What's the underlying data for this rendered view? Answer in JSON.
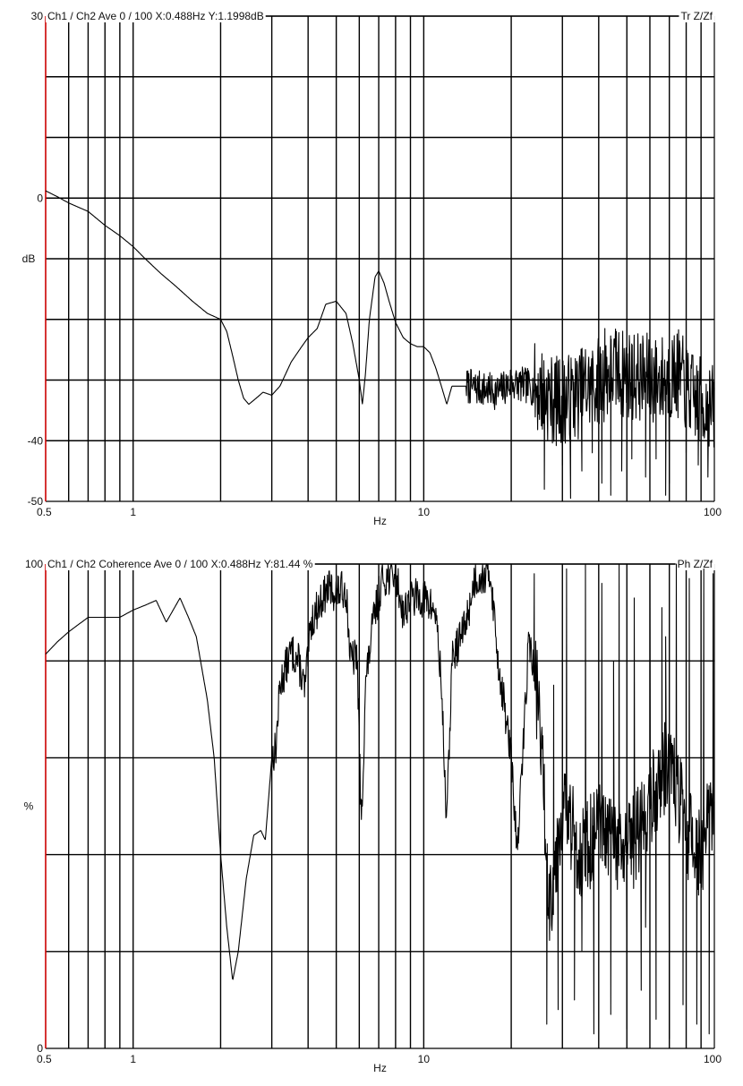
{
  "chart_data": [
    {
      "type": "line",
      "header": "Ch1 / Ch2  Ave 0 / 100  X:0.488Hz  Y:1.1998dB",
      "corner_label": "Tr Z/Zf",
      "xlabel": "Hz",
      "ylabel": "dB",
      "x_scale": "log",
      "xlim": [
        0.5,
        100
      ],
      "ylim": [
        -50,
        30
      ],
      "x_ticklabels": [
        "0.5",
        "1",
        "10",
        "100"
      ],
      "y_ticklabels": [
        "30",
        "0",
        "-40",
        "-50"
      ],
      "grid": true,
      "axis_color": "#cc0000",
      "line_color": "#000000",
      "noise_seed": 7,
      "noise_from_hz": 14,
      "series": [
        {
          "points": [
            [
              0.5,
              1.2
            ],
            [
              0.55,
              0.2
            ],
            [
              0.6,
              -0.8
            ],
            [
              0.7,
              -2.2
            ],
            [
              0.8,
              -4.5
            ],
            [
              0.9,
              -6.2
            ],
            [
              1.0,
              -8.0
            ],
            [
              1.1,
              -10.0
            ],
            [
              1.25,
              -12.5
            ],
            [
              1.4,
              -14.5
            ],
            [
              1.6,
              -17.0
            ],
            [
              1.8,
              -19.0
            ],
            [
              2.0,
              -20.0
            ],
            [
              2.1,
              -22.0
            ],
            [
              2.2,
              -26.0
            ],
            [
              2.3,
              -30.0
            ],
            [
              2.4,
              -33.0
            ],
            [
              2.5,
              -34.0
            ],
            [
              2.65,
              -33.0
            ],
            [
              2.8,
              -32.0
            ],
            [
              3.0,
              -32.5
            ],
            [
              3.2,
              -31.0
            ],
            [
              3.5,
              -27.0
            ],
            [
              3.8,
              -24.5
            ],
            [
              4.0,
              -23.0
            ],
            [
              4.3,
              -21.5
            ],
            [
              4.6,
              -17.5
            ],
            [
              5.0,
              -17.0
            ],
            [
              5.4,
              -19.0
            ],
            [
              5.7,
              -24.0
            ],
            [
              6.0,
              -30.0
            ],
            [
              6.15,
              -34.0
            ],
            [
              6.3,
              -29.0
            ],
            [
              6.5,
              -20.0
            ],
            [
              6.8,
              -13.0
            ],
            [
              7.0,
              -12.0
            ],
            [
              7.3,
              -14.0
            ],
            [
              7.6,
              -17.0
            ],
            [
              8.0,
              -20.5
            ],
            [
              8.5,
              -23.0
            ],
            [
              9.0,
              -24.0
            ],
            [
              9.5,
              -24.5
            ],
            [
              10.0,
              -24.5
            ],
            [
              10.5,
              -25.5
            ],
            [
              11.0,
              -28.0
            ],
            [
              11.5,
              -31.0
            ],
            [
              12.0,
              -34.0
            ],
            [
              12.5,
              -31.0
            ],
            [
              14.0,
              -31.0
            ],
            [
              16.0,
              -31.5
            ],
            [
              18.0,
              -32.0
            ],
            [
              20.0,
              -30.5
            ],
            [
              23.0,
              -31.0
            ],
            [
              26.0,
              -32.0
            ],
            [
              28.0,
              -33.5
            ],
            [
              32.0,
              -33.0
            ],
            [
              38.0,
              -31.0
            ],
            [
              45.0,
              -28.5
            ],
            [
              55.0,
              -29.5
            ],
            [
              65.0,
              -30.0
            ],
            [
              75.0,
              -29.0
            ],
            [
              85.0,
              -33.0
            ],
            [
              100.0,
              -35.0
            ]
          ],
          "noise_amp": 3,
          "spikes": [
            [
              26.0,
              -48.0
            ],
            [
              30.0,
              -44.0
            ],
            [
              32.0,
              -49.5
            ],
            [
              35.0,
              -45.0
            ],
            [
              38.0,
              -42.0
            ],
            [
              41.0,
              -47.0
            ],
            [
              44.0,
              -49.0
            ],
            [
              48.0,
              -45.0
            ],
            [
              52.0,
              -43.0
            ],
            [
              58.0,
              -46.0
            ],
            [
              63.0,
              -43.0
            ],
            [
              68.0,
              -49.0
            ],
            [
              70.0,
              -47.0
            ],
            [
              80.0,
              -42.0
            ],
            [
              88.0,
              -44.0
            ],
            [
              95.0,
              -46.0
            ],
            [
              42.0,
              -21.5
            ],
            [
              46.0,
              -22.0
            ],
            [
              60.0,
              -24.5
            ],
            [
              78.0,
              -26.5
            ],
            [
              36.0,
              -25.0
            ],
            [
              53.0,
              -24.0
            ]
          ]
        }
      ]
    },
    {
      "type": "line",
      "header": "Ch1 / Ch2  Coherence Ave 0 / 100  X:0.488Hz  Y:81.44 %",
      "corner_label": "Ph Z/Zf",
      "xlabel": "Hz",
      "ylabel": "%",
      "x_scale": "log",
      "xlim": [
        0.5,
        100
      ],
      "ylim": [
        0,
        100
      ],
      "x_ticklabels": [
        "0.5",
        "1",
        "10",
        "100"
      ],
      "y_ticklabels": [
        "100",
        "0"
      ],
      "grid": true,
      "axis_color": "#cc0000",
      "line_color": "#000000",
      "noise_seed": 13,
      "noise_from_hz": 3,
      "series": [
        {
          "points": [
            [
              0.5,
              81.4
            ],
            [
              0.55,
              84.0
            ],
            [
              0.6,
              86.0
            ],
            [
              0.7,
              89.0
            ],
            [
              0.8,
              89.0
            ],
            [
              0.9,
              89.0
            ],
            [
              1.0,
              90.5
            ],
            [
              1.1,
              91.5
            ],
            [
              1.2,
              92.5
            ],
            [
              1.3,
              88.0
            ],
            [
              1.45,
              93.0
            ],
            [
              1.55,
              89.0
            ],
            [
              1.65,
              85.0
            ],
            [
              1.8,
              72.0
            ],
            [
              1.9,
              60.0
            ],
            [
              2.0,
              40.0
            ],
            [
              2.1,
              25.0
            ],
            [
              2.2,
              14.0
            ],
            [
              2.3,
              20.0
            ],
            [
              2.45,
              35.0
            ],
            [
              2.6,
              44.0
            ],
            [
              2.75,
              45.0
            ],
            [
              2.85,
              43.0
            ],
            [
              3.0,
              60.0
            ],
            [
              3.1,
              62.0
            ],
            [
              3.2,
              75.0
            ],
            [
              3.5,
              82.0
            ],
            [
              3.7,
              80.0
            ],
            [
              3.9,
              74.0
            ],
            [
              4.1,
              88.0
            ],
            [
              4.4,
              92.0
            ],
            [
              4.7,
              95.0
            ],
            [
              5.0,
              94.0
            ],
            [
              5.4,
              95.0
            ],
            [
              5.6,
              80.0
            ],
            [
              5.9,
              81.0
            ],
            [
              6.1,
              45.0
            ],
            [
              6.3,
              75.0
            ],
            [
              6.7,
              88.0
            ],
            [
              7.2,
              97.0
            ],
            [
              8.0,
              98.0
            ],
            [
              8.5,
              90.0
            ],
            [
              9.0,
              93.0
            ],
            [
              10.0,
              93.0
            ],
            [
              11.0,
              90.0
            ],
            [
              11.5,
              75.0
            ],
            [
              12.0,
              46.0
            ],
            [
              12.5,
              80.0
            ],
            [
              14.0,
              88.0
            ],
            [
              15.0,
              97.0
            ],
            [
              17.0,
              98.0
            ],
            [
              18.0,
              80.0
            ],
            [
              19.0,
              70.0
            ],
            [
              20.0,
              60.0
            ],
            [
              21.0,
              40.0
            ],
            [
              23.0,
              85.0
            ],
            [
              25.0,
              70.0
            ],
            [
              27.0,
              30.0
            ],
            [
              30.0,
              50.0
            ],
            [
              35.0,
              40.0
            ],
            [
              40.0,
              45.0
            ],
            [
              50.0,
              40.0
            ],
            [
              60.0,
              50.0
            ],
            [
              70.0,
              60.0
            ],
            [
              80.0,
              45.0
            ],
            [
              90.0,
              40.0
            ],
            [
              100.0,
              50.0
            ]
          ],
          "noise_amp": 4,
          "spikes": [
            [
              24.0,
              98.0
            ],
            [
              26.5,
              5.0
            ],
            [
              29.0,
              8.0
            ],
            [
              31.0,
              99.0
            ],
            [
              33.0,
              10.0
            ],
            [
              36.0,
              100.0
            ],
            [
              38.5,
              3.0
            ],
            [
              41.0,
              96.0
            ],
            [
              44.0,
              7.0
            ],
            [
              47.0,
              100.0
            ],
            [
              50.0,
              4.0
            ],
            [
              53.0,
              93.0
            ],
            [
              56.0,
              12.0
            ],
            [
              60.0,
              99.0
            ],
            [
              63.0,
              6.0
            ],
            [
              66.0,
              91.0
            ],
            [
              70.0,
              2.0
            ],
            [
              74.0,
              100.0
            ],
            [
              78.0,
              9.0
            ],
            [
              82.0,
              97.0
            ],
            [
              87.0,
              5.0
            ],
            [
              92.0,
              99.0
            ],
            [
              96.0,
              3.0
            ],
            [
              99.0,
              98.0
            ],
            [
              28.0,
              75.0
            ],
            [
              35.0,
              20.0
            ],
            [
              45.0,
              80.0
            ],
            [
              58.0,
              25.0
            ],
            [
              68.0,
              85.0
            ]
          ]
        }
      ]
    }
  ]
}
